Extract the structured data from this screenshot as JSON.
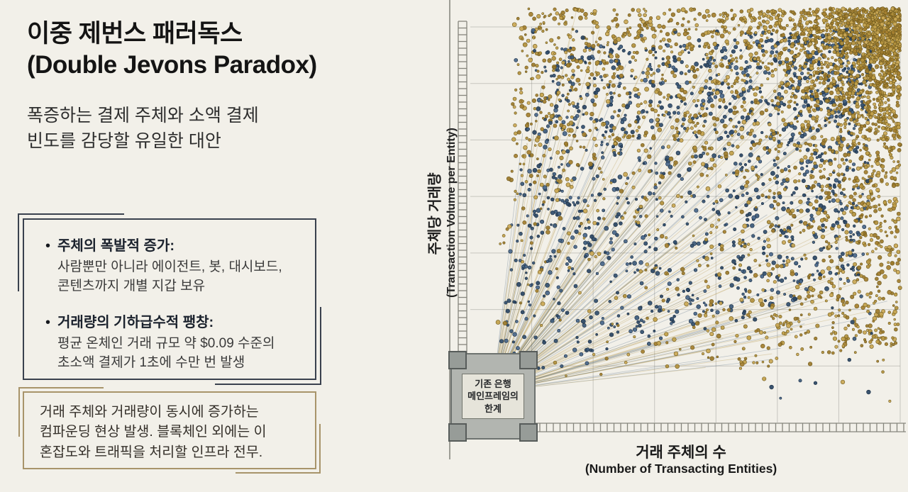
{
  "left": {
    "title": {
      "line1": "이중 제번스 패러독스",
      "line2": "(Double Jevons Paradox)"
    },
    "subtitle": {
      "line1": "폭증하는 결제 주체와 소액 결제",
      "line2": "빈도를 감당할 유일한 대안"
    },
    "points": [
      {
        "bullet": "•",
        "heading": "주체의 폭발적 증가:",
        "body_line1": "사람뿐만 아니라 에이전트, 봇, 대시보드,",
        "body_line2": "콘텐츠까지 개별 지갑 보유"
      },
      {
        "bullet": "•",
        "heading": "거래량의 기하급수적 팽창:",
        "body_line1": "평균 온체인 거래 규모 약 $0.09 수준의",
        "body_line2": "초소액 결제가 1초에 수만 번 발생"
      }
    ],
    "summary": {
      "line1": "거래 주체와 거래량이 동시에 증가하는",
      "line2": "컴파운딩 현상 발생. 블록체인 외에는 이",
      "line3": "혼잡도와 트래픽을 처리할 인프라 전무."
    }
  },
  "chart": {
    "y_axis_label_ko": "주체당 거래량",
    "y_axis_label_en": "(Transaction Volume per Entity)",
    "x_axis_label_ko": "거래 주체의 수",
    "x_axis_label_en": "(Number of Transacting Entities)",
    "mainframe": {
      "line1": "기존 은행",
      "line2": "메인프레임의",
      "line3": "한계"
    },
    "colors": {
      "background": "#f2f0e9",
      "grid": "rgba(110,110,104,0.32)",
      "axis": "#85857d",
      "gold_palette": [
        "#c2a04a",
        "#b3913d",
        "#a57f2f",
        "#caa855",
        "#9c7a2c"
      ],
      "gold_stroke": "#6e5a1e",
      "navy_palette": [
        "#3c5a7a",
        "#33506e",
        "#2b4663",
        "#49678a"
      ],
      "navy_stroke": "#1c2f45",
      "gold_ray": "rgba(176,143,61,0.30)",
      "navy_ray": "rgba(64,94,124,0.30)"
    },
    "scatter": {
      "seed": 11,
      "gold_fan_count": 1500,
      "gold_corner_count": 1800,
      "navy_fan_count": 1000,
      "navy_corner_count": 480,
      "ray_count": 150
    }
  },
  "chart_data": {
    "type": "scatter",
    "title": "",
    "xlabel": "거래 주체의 수 (Number of Transacting Entities)",
    "ylabel": "주체당 거래량 (Transaction Volume per Entity)",
    "axes_ticks": "none (illustrative, unlabeled axes)",
    "legend": "none",
    "series": [
      {
        "name": "gold-entities",
        "color": "#b3913d",
        "approx_count": 3300,
        "pattern": "fan radiating from lower-left origin, density saturating toward upper-right corner"
      },
      {
        "name": "navy-entities",
        "color": "#33506e",
        "approx_count": 1480,
        "pattern": "fan radiating from lower-left origin, concentrated in mid-range band"
      }
    ],
    "annotations": [
      "기존 은행 메인프레임의 한계 (box at axes origin)"
    ]
  }
}
